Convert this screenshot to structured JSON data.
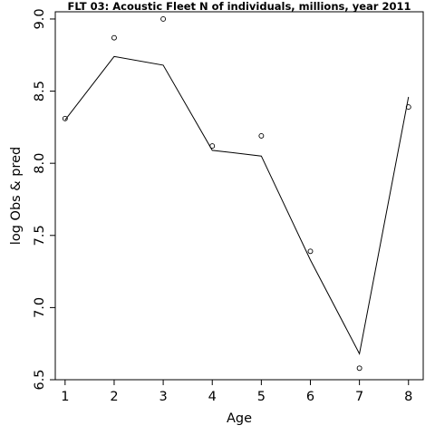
{
  "chart_data": {
    "type": "line",
    "title": "FLT 03: Acoustic Fleet  N of individuals, millions, year 2011",
    "xlabel": "Age",
    "ylabel": "log Obs & pred",
    "x": [
      1,
      2,
      3,
      4,
      5,
      6,
      7,
      8
    ],
    "xlim": [
      0.8,
      8.3
    ],
    "ylim": [
      6.5,
      9.05
    ],
    "xticks": [
      1,
      2,
      3,
      4,
      5,
      6,
      7,
      8
    ],
    "yticks": [
      6.5,
      7.0,
      7.5,
      8.0,
      8.5,
      9.0
    ],
    "ytick_labels": [
      "6.5",
      "7.0",
      "7.5",
      "8.0",
      "8.5",
      "9.0"
    ],
    "grid": false,
    "series": [
      {
        "kind": "points",
        "marker": "open-circle",
        "color": "#000000",
        "values": [
          8.31,
          8.87,
          9.0,
          8.12,
          8.19,
          7.39,
          6.58,
          8.39
        ]
      },
      {
        "kind": "line",
        "color": "#000000",
        "values": [
          8.3,
          8.74,
          8.68,
          8.09,
          8.05,
          7.33,
          6.68,
          8.46
        ]
      }
    ]
  }
}
